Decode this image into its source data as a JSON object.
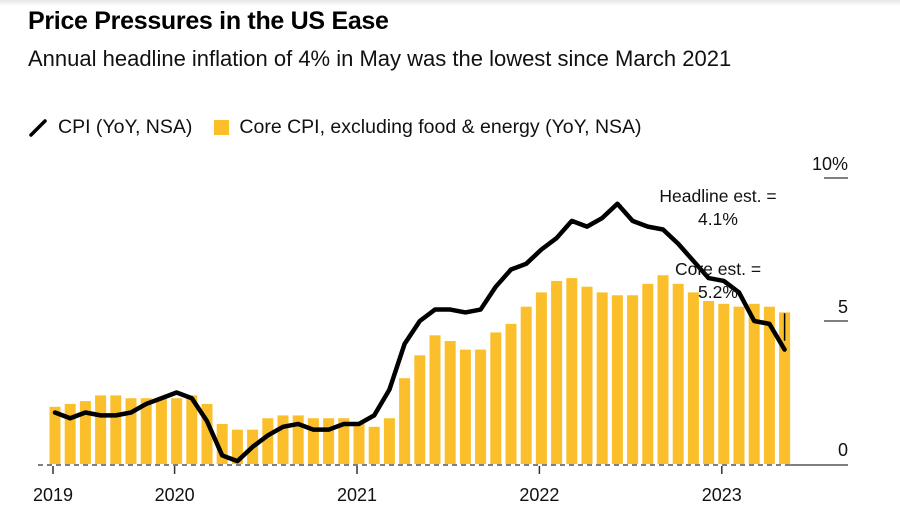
{
  "header": {
    "title": "Price Pressures in the US Ease",
    "subtitle": "Annual headline inflation of 4% in May was the lowest since March 2021"
  },
  "legend": [
    {
      "label": "CPI (YoY, NSA)",
      "icon": "line-icon",
      "color": "#000000"
    },
    {
      "label": "Core CPI, excluding food & energy (YoY, NSA)",
      "icon": "square-icon",
      "color": "#FCBF2C"
    }
  ],
  "colors": {
    "headline_line": "#000000",
    "core_bars": "#FCBF2C",
    "axis": "#222222"
  },
  "chart_data": {
    "type": "bar+line",
    "title": "Price Pressures in the US Ease",
    "subtitle": "Annual headline inflation of 4% in May was the lowest since March 2021",
    "xlabel": "",
    "ylabel": "",
    "ylim": [
      0,
      10
    ],
    "y_ticks": [
      {
        "value": 10,
        "label": "10%"
      },
      {
        "value": 5,
        "label": "5"
      },
      {
        "value": 0,
        "label": "0"
      }
    ],
    "x_ticks": [
      {
        "index": 0,
        "label": "2019"
      },
      {
        "index": 8,
        "label": "2020"
      },
      {
        "index": 20,
        "label": "2021"
      },
      {
        "index": 32,
        "label": "2022"
      },
      {
        "index": 44,
        "label": "2023"
      }
    ],
    "grid": false,
    "legend_position": "top-left",
    "categories": [
      "2019-05",
      "2019-06",
      "2019-07",
      "2019-08",
      "2019-09",
      "2019-10",
      "2019-11",
      "2019-12",
      "2020-01",
      "2020-02",
      "2020-03",
      "2020-04",
      "2020-05",
      "2020-06",
      "2020-07",
      "2020-08",
      "2020-09",
      "2020-10",
      "2020-11",
      "2020-12",
      "2021-01",
      "2021-02",
      "2021-03",
      "2021-04",
      "2021-05",
      "2021-06",
      "2021-07",
      "2021-08",
      "2021-09",
      "2021-10",
      "2021-11",
      "2021-12",
      "2022-01",
      "2022-02",
      "2022-03",
      "2022-04",
      "2022-05",
      "2022-06",
      "2022-07",
      "2022-08",
      "2022-09",
      "2022-10",
      "2022-11",
      "2022-12",
      "2023-01",
      "2023-02",
      "2023-03",
      "2023-04",
      "2023-05"
    ],
    "series": [
      {
        "name": "CPI (YoY, NSA)",
        "type": "line",
        "values": [
          1.8,
          1.6,
          1.8,
          1.7,
          1.7,
          1.8,
          2.1,
          2.3,
          2.5,
          2.3,
          1.5,
          0.3,
          0.1,
          0.6,
          1.0,
          1.3,
          1.4,
          1.2,
          1.2,
          1.4,
          1.4,
          1.7,
          2.6,
          4.2,
          5.0,
          5.4,
          5.4,
          5.3,
          5.4,
          6.2,
          6.8,
          7.0,
          7.5,
          7.9,
          8.5,
          8.3,
          8.6,
          9.1,
          8.5,
          8.3,
          8.2,
          7.7,
          7.1,
          6.5,
          6.4,
          6.0,
          5.0,
          4.9,
          4.0
        ]
      },
      {
        "name": "Core CPI, excluding food & energy (YoY, NSA)",
        "type": "bar",
        "values": [
          2.0,
          2.1,
          2.2,
          2.4,
          2.4,
          2.3,
          2.3,
          2.3,
          2.3,
          2.4,
          2.1,
          1.4,
          1.2,
          1.2,
          1.6,
          1.7,
          1.7,
          1.6,
          1.6,
          1.6,
          1.4,
          1.3,
          1.6,
          3.0,
          3.8,
          4.5,
          4.3,
          4.0,
          4.0,
          4.6,
          4.9,
          5.5,
          6.0,
          6.4,
          6.5,
          6.2,
          6.0,
          5.9,
          5.9,
          6.3,
          6.6,
          6.3,
          6.0,
          5.7,
          5.6,
          5.5,
          5.6,
          5.5,
          5.3
        ]
      }
    ],
    "annotations": [
      {
        "text_line1": "Headline est. =",
        "text_line2": "4.1%",
        "value": 4.1,
        "index": 48
      },
      {
        "text_line1": "Core est. =",
        "text_line2": "5.2%",
        "value": 5.2,
        "index": 48
      }
    ]
  }
}
